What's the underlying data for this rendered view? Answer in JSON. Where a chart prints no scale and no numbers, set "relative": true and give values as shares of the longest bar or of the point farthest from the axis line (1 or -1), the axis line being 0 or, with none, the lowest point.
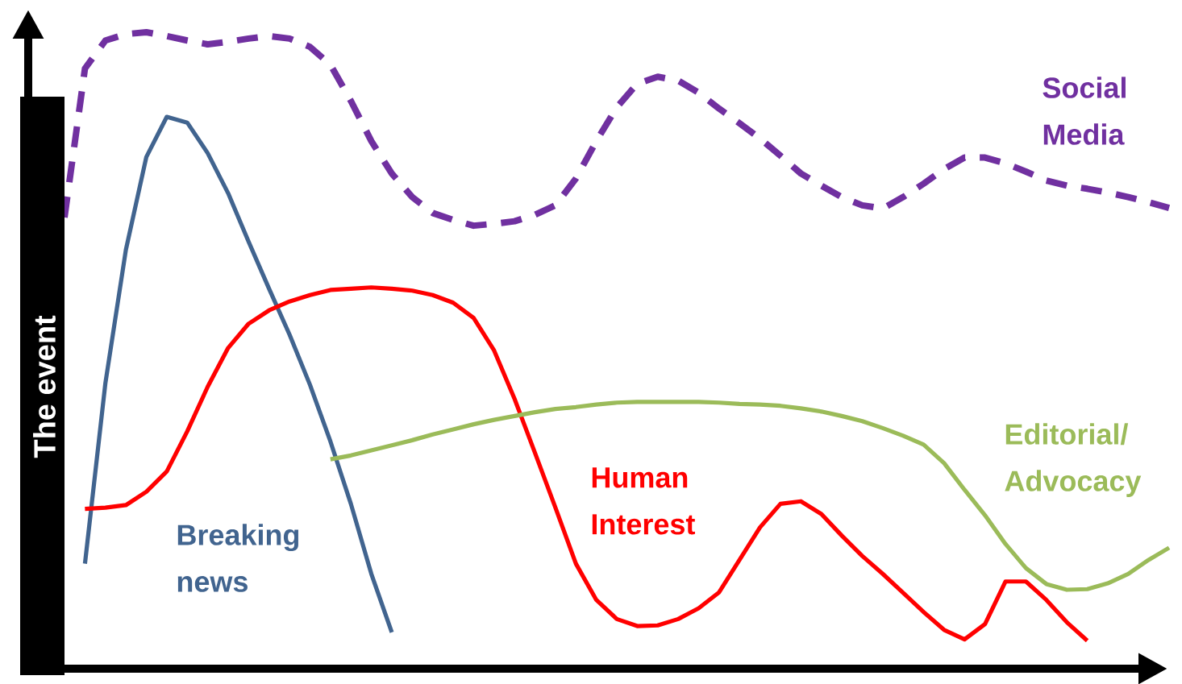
{
  "chart_data": {
    "type": "line",
    "relative": true,
    "ylabel": "The event",
    "categories": [
      null,
      null,
      null,
      null,
      null,
      null,
      null,
      null,
      null,
      null,
      null,
      null,
      null,
      null,
      null,
      null,
      null,
      null,
      null,
      null,
      null,
      null,
      null,
      null,
      null,
      null,
      null,
      null,
      null,
      null,
      null,
      null,
      null,
      null,
      null,
      null,
      null,
      null,
      null,
      null,
      null,
      null,
      null,
      null,
      null,
      null,
      null,
      null,
      null,
      null,
      null,
      null,
      null,
      null,
      null
    ],
    "series": [
      {
        "name": "Social Media",
        "color": "#7030a0",
        "line_style": "dashed",
        "values": [
          0.709,
          0.943,
          0.987,
          0.997,
          1,
          0.994,
          0.987,
          0.981,
          0.985,
          0.99,
          0.994,
          0.99,
          0.977,
          0.949,
          0.892,
          0.829,
          0.778,
          0.741,
          0.716,
          0.705,
          0.696,
          0.699,
          0.703,
          0.713,
          0.728,
          0.77,
          0.829,
          0.882,
          0.919,
          0.93,
          0.924,
          0.905,
          0.88,
          0.857,
          0.833,
          0.806,
          0.778,
          0.759,
          0.741,
          0.728,
          0.723,
          0.741,
          0.762,
          0.785,
          0.803,
          0.803,
          0.794,
          0.781,
          0.767,
          0.759,
          0.754,
          0.748,
          0.741,
          0.733,
          0.724
        ]
      },
      {
        "name": "Breaking news",
        "color": "#41648f",
        "line_style": "solid",
        "values": [
          null,
          0.165,
          0.449,
          0.658,
          0.804,
          0.867,
          0.858,
          0.81,
          0.747,
          0.671,
          0.597,
          0.525,
          0.446,
          0.357,
          0.259,
          0.149,
          0.057,
          null,
          null,
          null,
          null,
          null,
          null,
          null,
          null,
          null,
          null,
          null,
          null,
          null,
          null,
          null,
          null,
          null,
          null,
          null,
          null,
          null,
          null,
          null,
          null,
          null,
          null,
          null,
          null,
          null,
          null,
          null,
          null,
          null,
          null,
          null,
          null,
          null,
          null
        ]
      },
      {
        "name": "Human Interest",
        "color": "#ff0000",
        "line_style": "solid",
        "values": [
          null,
          0.251,
          0.253,
          0.257,
          0.278,
          0.31,
          0.373,
          0.443,
          0.504,
          0.542,
          0.563,
          0.577,
          0.587,
          0.595,
          0.597,
          0.599,
          0.597,
          0.594,
          0.587,
          0.575,
          0.551,
          0.5,
          0.424,
          0.339,
          0.253,
          0.165,
          0.108,
          0.078,
          0.067,
          0.068,
          0.078,
          0.095,
          0.12,
          0.171,
          0.222,
          0.259,
          0.263,
          0.243,
          0.209,
          0.177,
          0.149,
          0.119,
          0.089,
          0.061,
          0.046,
          0.07,
          0.137,
          0.137,
          0.108,
          0.073,
          0.044,
          null,
          null,
          null,
          null
        ]
      },
      {
        "name": "Editorial/ Advocacy",
        "color": "#9bbb59",
        "line_style": "solid",
        "values": [
          null,
          null,
          null,
          null,
          null,
          null,
          null,
          null,
          null,
          null,
          null,
          null,
          null,
          0.329,
          0.335,
          0.343,
          0.351,
          0.359,
          0.368,
          0.376,
          0.384,
          0.391,
          0.397,
          0.403,
          0.408,
          0.411,
          0.415,
          0.418,
          0.419,
          0.419,
          0.419,
          0.419,
          0.418,
          0.416,
          0.415,
          0.413,
          0.409,
          0.404,
          0.397,
          0.389,
          0.378,
          0.366,
          0.352,
          0.323,
          0.281,
          0.241,
          0.196,
          0.158,
          0.133,
          0.124,
          0.125,
          0.134,
          0.149,
          0.171,
          0.19
        ]
      }
    ]
  }
}
